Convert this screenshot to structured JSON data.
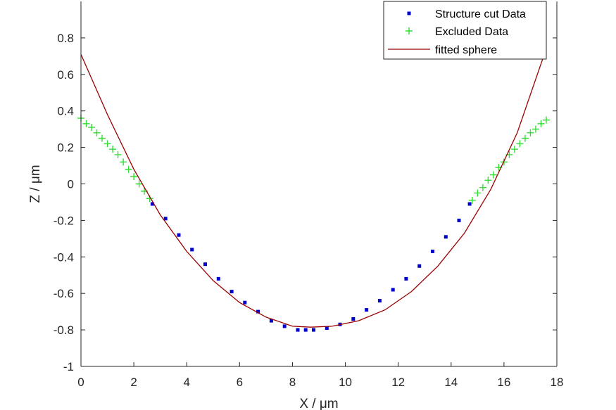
{
  "chart_data": {
    "type": "scatter",
    "xlabel": "X / μm",
    "ylabel": "Z / μm",
    "xlim": [
      0,
      18
    ],
    "ylim": [
      -1,
      1
    ],
    "xticks": [
      0,
      2,
      4,
      6,
      8,
      10,
      12,
      14,
      16,
      18
    ],
    "yticks": [
      -1,
      -0.8,
      -0.6,
      -0.4,
      -0.2,
      0,
      0.2,
      0.4,
      0.6,
      0.8
    ],
    "grid": false,
    "legend_position": "top-right",
    "series": [
      {
        "name": "Structure cut Data",
        "kind": "points",
        "marker": "square",
        "color": "#0000cc",
        "x": [
          2.7,
          3.2,
          3.7,
          4.2,
          4.7,
          5.2,
          5.7,
          6.2,
          6.7,
          7.2,
          7.7,
          8.2,
          8.5,
          8.8,
          9.3,
          9.8,
          10.3,
          10.8,
          11.3,
          11.8,
          12.3,
          12.8,
          13.3,
          13.8,
          14.3,
          14.7
        ],
        "y": [
          -0.11,
          -0.19,
          -0.28,
          -0.36,
          -0.44,
          -0.52,
          -0.59,
          -0.65,
          -0.7,
          -0.75,
          -0.78,
          -0.8,
          -0.8,
          -0.8,
          -0.79,
          -0.77,
          -0.74,
          -0.69,
          -0.64,
          -0.58,
          -0.52,
          -0.45,
          -0.37,
          -0.29,
          -0.2,
          -0.11
        ]
      },
      {
        "name": "Excluded Data",
        "kind": "points",
        "marker": "plus",
        "color": "#33dd33",
        "x": [
          0.0,
          0.2,
          0.4,
          0.6,
          0.8,
          1.0,
          1.2,
          1.4,
          1.6,
          1.8,
          2.0,
          2.2,
          2.4,
          2.6,
          14.8,
          15.0,
          15.2,
          15.4,
          15.6,
          15.8,
          16.0,
          16.2,
          16.4,
          16.6,
          16.8,
          17.0,
          17.2,
          17.4,
          17.6
        ],
        "y": [
          0.36,
          0.33,
          0.31,
          0.28,
          0.25,
          0.22,
          0.19,
          0.16,
          0.12,
          0.08,
          0.04,
          0.0,
          -0.04,
          -0.08,
          -0.09,
          -0.05,
          -0.02,
          0.02,
          0.05,
          0.09,
          0.12,
          0.16,
          0.19,
          0.22,
          0.25,
          0.28,
          0.3,
          0.33,
          0.35
        ]
      },
      {
        "name": "fitted sphere",
        "kind": "line",
        "color": "#990000",
        "x": [
          0,
          1,
          2,
          3,
          4,
          5,
          6,
          7,
          8,
          8.7,
          9.5,
          10.5,
          11.5,
          12.5,
          13.5,
          14.5,
          15.5,
          16.5,
          17.5
        ],
        "y": [
          0.71,
          0.38,
          0.08,
          -0.17,
          -0.37,
          -0.53,
          -0.65,
          -0.73,
          -0.78,
          -0.785,
          -0.78,
          -0.75,
          -0.69,
          -0.59,
          -0.45,
          -0.27,
          -0.03,
          0.28,
          0.7
        ]
      }
    ]
  }
}
